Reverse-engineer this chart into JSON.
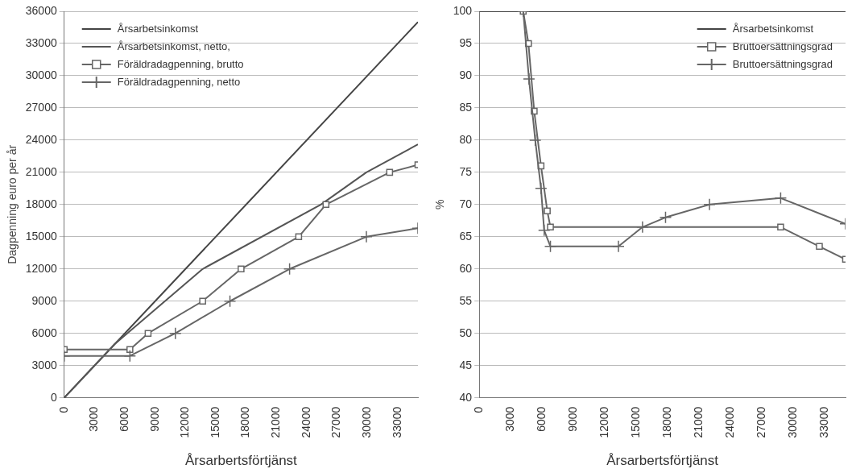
{
  "chart_data": [
    {
      "type": "line",
      "xlabel": "Årsarbertsförtjänst",
      "ylabel": "Dagpenning euro per år",
      "xlim": [
        0,
        35000
      ],
      "xticks": [
        0,
        3000,
        6000,
        9000,
        12000,
        15000,
        18000,
        21000,
        24000,
        27000,
        30000,
        33000
      ],
      "ylim": [
        0,
        36000
      ],
      "yticks": [
        0,
        3000,
        6000,
        9000,
        12000,
        15000,
        18000,
        21000,
        24000,
        27000,
        30000,
        33000,
        36000
      ],
      "grid": "y",
      "legend": "top left",
      "series": [
        {
          "name": "Årsarbetsinkomst",
          "color": "#444444",
          "marker": "none",
          "x": [
            0,
            35000
          ],
          "values": [
            0,
            35000
          ]
        },
        {
          "name": "Årsarbetsinkomst, netto,",
          "color": "#555555",
          "marker": "none",
          "x": [
            0,
            5000,
            13700,
            25400,
            29900,
            35000
          ],
          "values": [
            0,
            5000,
            12000,
            18000,
            21000,
            23600
          ]
        },
        {
          "name": "Föräldradagpenning, brutto",
          "color": "#666666",
          "marker": "square",
          "x": [
            0,
            6500,
            8300,
            13700,
            17500,
            23200,
            25900,
            32200,
            35000
          ],
          "values": [
            4500,
            4500,
            6000,
            9000,
            12000,
            15000,
            18000,
            21000,
            21700
          ]
        },
        {
          "name": "Föräldradagpenning, netto",
          "color": "#666666",
          "marker": "cross",
          "x": [
            0,
            6500,
            11000,
            16400,
            22300,
            29900,
            35000
          ],
          "values": [
            3900,
            3900,
            6000,
            9000,
            12000,
            15000,
            15800
          ]
        }
      ]
    },
    {
      "type": "line",
      "xlabel": "Årsarbertsförtjänst",
      "ylabel": "%",
      "xlim": [
        0,
        35000
      ],
      "xticks": [
        0,
        3000,
        6000,
        9000,
        12000,
        15000,
        18000,
        21000,
        24000,
        27000,
        30000,
        33000
      ],
      "ylim": [
        40,
        100
      ],
      "yticks": [
        40,
        45,
        50,
        55,
        60,
        65,
        70,
        75,
        80,
        85,
        90,
        95,
        100
      ],
      "grid": "y",
      "legend": "top right",
      "series": [
        {
          "name": "Årsarbetsinkomst",
          "color": "#444444",
          "marker": "none",
          "x": [
            0,
            35000
          ],
          "values": [
            100,
            100
          ]
        },
        {
          "name": "Bruttoersättningsgrad",
          "color": "#666666",
          "marker": "square",
          "x": [
            4200,
            4700,
            5250,
            5900,
            6500,
            6800,
            28800,
            32500,
            35000
          ],
          "values": [
            100,
            95,
            84.5,
            76,
            69,
            66.5,
            66.5,
            63.5,
            61.5
          ]
        },
        {
          "name": "Bruttoersättningsgrad",
          "color": "#666666",
          "marker": "cross",
          "x": [
            4200,
            4750,
            5350,
            5900,
            6200,
            6800,
            13300,
            15600,
            17800,
            22000,
            28800,
            35000
          ],
          "values": [
            100,
            89.5,
            80,
            72.5,
            66,
            63.5,
            63.5,
            66.5,
            68,
            70,
            71,
            67
          ]
        }
      ]
    }
  ]
}
